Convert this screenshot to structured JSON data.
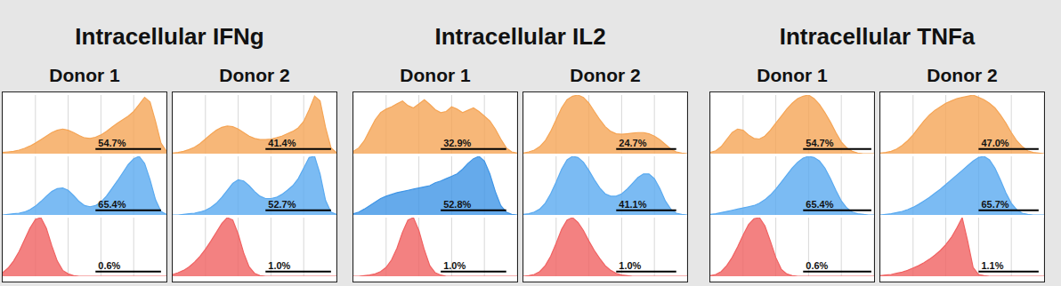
{
  "chart_data": [
    {
      "type": "area",
      "subtitle": "Intracellular IFNg",
      "title": "Donor 1",
      "tick_labels": false,
      "grid": true,
      "x": [
        0,
        1,
        2,
        3,
        4,
        5,
        6,
        7,
        8,
        9,
        10,
        11,
        12,
        13,
        14,
        15,
        16,
        17,
        18,
        19,
        20,
        21,
        22,
        23,
        24,
        25,
        26,
        27,
        28,
        29,
        30
      ],
      "xlim": [
        0,
        30
      ],
      "ylim": [
        0,
        100
      ],
      "xticks": [
        6,
        12,
        18,
        24
      ],
      "series": [
        {
          "color": "#f5a556",
          "gate": [
            17,
            29
          ],
          "gate_label": "54.7%",
          "values": [
            2,
            3,
            4,
            6,
            9,
            13,
            18,
            24,
            30,
            36,
            40,
            42,
            40,
            36,
            31,
            27,
            26,
            28,
            32,
            38,
            45,
            52,
            58,
            64,
            72,
            84,
            96,
            88,
            55,
            18,
            4
          ]
        },
        {
          "color": "#5aaaf0",
          "gate": [
            17,
            29
          ],
          "gate_label": "65.4%",
          "values": [
            0,
            1,
            2,
            3,
            5,
            9,
            15,
            23,
            32,
            40,
            45,
            46,
            42,
            33,
            23,
            16,
            14,
            16,
            22,
            32,
            45,
            58,
            72,
            86,
            96,
            100,
            88,
            60,
            26,
            6,
            1
          ]
        },
        {
          "color": "#f06262",
          "gate": [
            17,
            29
          ],
          "gate_label": "0.6%",
          "values": [
            6,
            14,
            26,
            42,
            62,
            82,
            97,
            100,
            82,
            52,
            26,
            10,
            4,
            1,
            0,
            0,
            0,
            0,
            0,
            0,
            0,
            0,
            0,
            0,
            0,
            0,
            0,
            0,
            0,
            0,
            0
          ]
        }
      ]
    },
    {
      "type": "area",
      "subtitle": "Intracellular IFNg",
      "title": "Donor 2",
      "tick_labels": false,
      "grid": true,
      "x": [
        0,
        1,
        2,
        3,
        4,
        5,
        6,
        7,
        8,
        9,
        10,
        11,
        12,
        13,
        14,
        15,
        16,
        17,
        18,
        19,
        20,
        21,
        22,
        23,
        24,
        25,
        26,
        27,
        28,
        29,
        30
      ],
      "xlim": [
        0,
        30
      ],
      "ylim": [
        0,
        100
      ],
      "xticks": [
        6,
        12,
        18,
        24
      ],
      "series": [
        {
          "color": "#f5a556",
          "gate": [
            17,
            29
          ],
          "gate_label": "41.4%",
          "values": [
            1,
            2,
            4,
            7,
            11,
            17,
            25,
            33,
            40,
            45,
            47,
            46,
            42,
            36,
            30,
            26,
            24,
            24,
            25,
            27,
            30,
            34,
            38,
            44,
            55,
            75,
            98,
            90,
            45,
            10,
            2
          ]
        },
        {
          "color": "#5aaaf0",
          "gate": [
            17,
            29
          ],
          "gate_label": "52.7%",
          "values": [
            0,
            0,
            1,
            2,
            3,
            5,
            8,
            13,
            20,
            30,
            42,
            54,
            60,
            58,
            50,
            40,
            32,
            28,
            28,
            30,
            35,
            42,
            50,
            62,
            80,
            98,
            100,
            70,
            25,
            5,
            1
          ]
        },
        {
          "color": "#f06262",
          "gate": [
            17,
            29
          ],
          "gate_label": "1.0%",
          "values": [
            3,
            6,
            10,
            16,
            24,
            34,
            46,
            60,
            75,
            90,
            100,
            96,
            72,
            40,
            16,
            5,
            1,
            0,
            0,
            0,
            0,
            0,
            0,
            0,
            0,
            0,
            0,
            0,
            0,
            0,
            0
          ]
        }
      ]
    },
    {
      "type": "area",
      "subtitle": "Intracellular IL2",
      "title": "Donor 1",
      "tick_labels": false,
      "grid": true,
      "x": [
        0,
        1,
        2,
        3,
        4,
        5,
        6,
        7,
        8,
        9,
        10,
        11,
        12,
        13,
        14,
        15,
        16,
        17,
        18,
        19,
        20,
        21,
        22,
        23,
        24,
        25,
        26,
        27,
        28,
        29,
        30
      ],
      "xlim": [
        0,
        30
      ],
      "ylim": [
        0,
        100
      ],
      "xticks": [
        6,
        12,
        18,
        24
      ],
      "series": [
        {
          "color": "#f5a556",
          "gate": [
            16,
            28
          ],
          "gate_label": "32.9%",
          "values": [
            4,
            10,
            22,
            40,
            58,
            70,
            76,
            80,
            85,
            90,
            82,
            78,
            85,
            92,
            84,
            75,
            70,
            72,
            80,
            76,
            70,
            74,
            78,
            72,
            64,
            56,
            42,
            25,
            10,
            3,
            1
          ]
        },
        {
          "color": "#3f95e6",
          "gate": [
            16,
            28
          ],
          "gate_label": "52.8%",
          "values": [
            2,
            5,
            10,
            16,
            22,
            28,
            32,
            35,
            38,
            40,
            42,
            44,
            46,
            48,
            50,
            55,
            58,
            62,
            66,
            70,
            78,
            88,
            96,
            100,
            92,
            70,
            40,
            16,
            5,
            1,
            0
          ]
        },
        {
          "color": "#f06262",
          "gate": [
            16,
            28
          ],
          "gate_label": "1.0%",
          "values": [
            0,
            0,
            1,
            2,
            4,
            8,
            15,
            28,
            48,
            75,
            96,
            100,
            78,
            45,
            18,
            6,
            2,
            0,
            0,
            0,
            0,
            0,
            0,
            0,
            0,
            0,
            0,
            0,
            0,
            0,
            0
          ]
        }
      ]
    },
    {
      "type": "area",
      "subtitle": "Intracellular IL2",
      "title": "Donor 2",
      "tick_labels": false,
      "grid": true,
      "x": [
        0,
        1,
        2,
        3,
        4,
        5,
        6,
        7,
        8,
        9,
        10,
        11,
        12,
        13,
        14,
        15,
        16,
        17,
        18,
        19,
        20,
        21,
        22,
        23,
        24,
        25,
        26,
        27,
        28,
        29,
        30
      ],
      "xlim": [
        0,
        30
      ],
      "ylim": [
        0,
        100
      ],
      "xticks": [
        6,
        12,
        18,
        24
      ],
      "series": [
        {
          "color": "#f5a556",
          "gate": [
            17,
            28
          ],
          "gate_label": "24.7%",
          "values": [
            1,
            3,
            6,
            12,
            22,
            38,
            58,
            78,
            92,
            98,
            100,
            96,
            86,
            72,
            58,
            46,
            38,
            34,
            33,
            34,
            35,
            36,
            36,
            34,
            30,
            24,
            16,
            8,
            3,
            1,
            0
          ]
        },
        {
          "color": "#5aaaf0",
          "gate": [
            17,
            28
          ],
          "gate_label": "41.1%",
          "values": [
            1,
            2,
            5,
            10,
            20,
            36,
            56,
            78,
            94,
            100,
            98,
            90,
            76,
            60,
            46,
            36,
            32,
            32,
            36,
            44,
            54,
            64,
            70,
            70,
            62,
            45,
            24,
            10,
            3,
            1,
            0
          ]
        },
        {
          "color": "#f06262",
          "gate": [
            17,
            28
          ],
          "gate_label": "1.0%",
          "values": [
            0,
            1,
            3,
            8,
            18,
            34,
            56,
            80,
            96,
            100,
            92,
            78,
            60,
            44,
            30,
            18,
            10,
            5,
            2,
            1,
            0,
            0,
            0,
            0,
            0,
            0,
            0,
            0,
            0,
            0,
            0
          ]
        }
      ]
    },
    {
      "type": "area",
      "subtitle": "Intracellular TNFa",
      "title": "Donor 1",
      "tick_labels": false,
      "grid": true,
      "x": [
        0,
        1,
        2,
        3,
        4,
        5,
        6,
        7,
        8,
        9,
        10,
        11,
        12,
        13,
        14,
        15,
        16,
        17,
        18,
        19,
        20,
        21,
        22,
        23,
        24,
        25,
        26,
        27,
        28,
        29,
        30
      ],
      "xlim": [
        0,
        30
      ],
      "ylim": [
        0,
        100
      ],
      "xticks": [
        6,
        12,
        18,
        24
      ],
      "series": [
        {
          "color": "#f5a556",
          "gate": [
            17,
            29.5
          ],
          "gate_label": "54.7%",
          "values": [
            2,
            5,
            12,
            24,
            36,
            42,
            40,
            32,
            26,
            25,
            30,
            40,
            52,
            64,
            76,
            86,
            94,
            98,
            100,
            94,
            84,
            70,
            54,
            36,
            20,
            10,
            4,
            1,
            0,
            0,
            0
          ]
        },
        {
          "color": "#5aaaf0",
          "gate": [
            17,
            29.5
          ],
          "gate_label": "65.4%",
          "values": [
            1,
            2,
            4,
            6,
            8,
            10,
            12,
            14,
            16,
            20,
            26,
            34,
            44,
            56,
            68,
            80,
            90,
            97,
            100,
            98,
            92,
            80,
            62,
            42,
            24,
            12,
            5,
            2,
            1,
            0,
            0
          ]
        },
        {
          "color": "#f06262",
          "gate": [
            17,
            29.5
          ],
          "gate_label": "0.6%",
          "values": [
            1,
            3,
            8,
            18,
            32,
            50,
            70,
            88,
            98,
            100,
            86,
            60,
            32,
            12,
            4,
            1,
            0,
            0,
            0,
            0,
            0,
            0,
            0,
            0,
            0,
            0,
            0,
            0,
            0,
            0,
            0
          ]
        }
      ]
    },
    {
      "type": "area",
      "subtitle": "Intracellular TNFa",
      "title": "Donor 2",
      "tick_labels": false,
      "grid": true,
      "x": [
        0,
        1,
        2,
        3,
        4,
        5,
        6,
        7,
        8,
        9,
        10,
        11,
        12,
        13,
        14,
        15,
        16,
        17,
        18,
        19,
        20,
        21,
        22,
        23,
        24,
        25,
        26,
        27,
        28,
        29,
        30
      ],
      "xlim": [
        0,
        30
      ],
      "ylim": [
        0,
        100
      ],
      "xticks": [
        6,
        12,
        18,
        24
      ],
      "series": [
        {
          "color": "#f5a556",
          "gate": [
            18,
            29
          ],
          "gate_label": "47.0%",
          "values": [
            1,
            2,
            4,
            8,
            14,
            22,
            32,
            44,
            56,
            66,
            74,
            80,
            86,
            90,
            94,
            96,
            98,
            100,
            96,
            92,
            86,
            78,
            66,
            52,
            36,
            22,
            12,
            5,
            2,
            1,
            0
          ]
        },
        {
          "color": "#5aaaf0",
          "gate": [
            18,
            29
          ],
          "gate_label": "65.7%",
          "values": [
            0,
            1,
            2,
            4,
            6,
            9,
            13,
            18,
            24,
            30,
            37,
            44,
            52,
            60,
            68,
            76,
            84,
            92,
            98,
            100,
            94,
            80,
            60,
            38,
            20,
            9,
            3,
            1,
            0,
            0,
            0
          ]
        },
        {
          "color": "#f06262",
          "gate": [
            18,
            29
          ],
          "gate_label": "1.1%",
          "values": [
            1,
            2,
            3,
            5,
            7,
            10,
            14,
            18,
            23,
            29,
            36,
            44,
            54,
            66,
            82,
            100,
            60,
            15,
            3,
            1,
            0,
            0,
            0,
            0,
            0,
            0,
            0,
            0,
            0,
            0,
            0
          ]
        }
      ]
    }
  ]
}
